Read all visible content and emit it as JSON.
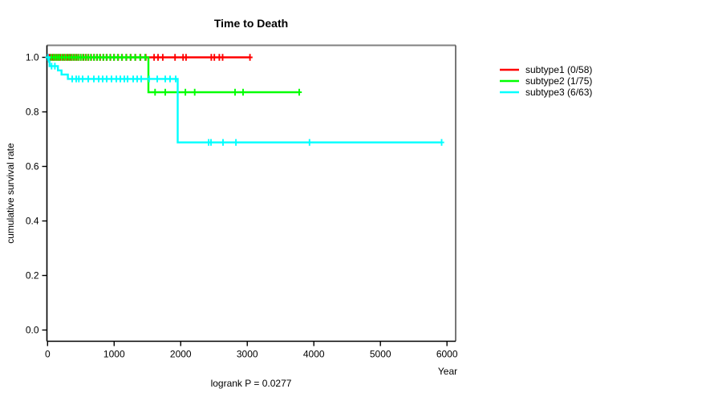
{
  "chart_data": {
    "type": "line",
    "variant": "kaplan-meier-step",
    "title": "Time to Death",
    "xlabel": "Year",
    "ylabel": "cumulative survival rate",
    "annotation": "logrank P = 0.0277",
    "xlim": [
      0,
      6000
    ],
    "ylim": [
      0,
      1.0
    ],
    "grid": false,
    "legend_position": "right-outside",
    "x_ticks": [
      0,
      1000,
      2000,
      3000,
      4000,
      5000,
      6000
    ],
    "x_tick_labels": [
      "0",
      "1000",
      "2000",
      "3000",
      "4000",
      "5000",
      "6000"
    ],
    "y_ticks": [
      0,
      0.2,
      0.4,
      0.6,
      0.8,
      1.0
    ],
    "y_tick_labels": [
      "0.0",
      "0.2",
      "0.4",
      "0.6",
      "0.8",
      "1.0"
    ],
    "series": [
      {
        "name": "subtype1",
        "label": "subtype1 (0/58)",
        "events": "0/58",
        "color": "#ff0000",
        "start": [
          0,
          1.0
        ],
        "steps": [],
        "end_x": 3040,
        "censor_marks": [
          [
            10,
            1
          ],
          [
            25,
            1
          ],
          [
            40,
            1
          ],
          [
            75,
            1
          ],
          [
            100,
            1
          ],
          [
            135,
            1
          ],
          [
            165,
            1
          ],
          [
            190,
            1
          ],
          [
            230,
            1
          ],
          [
            260,
            1
          ],
          [
            300,
            1
          ],
          [
            335,
            1
          ],
          [
            365,
            1
          ],
          [
            400,
            1
          ],
          [
            435,
            1
          ],
          [
            465,
            1
          ],
          [
            500,
            1
          ],
          [
            540,
            1
          ],
          [
            580,
            1
          ],
          [
            615,
            1
          ],
          [
            655,
            1
          ],
          [
            700,
            1
          ],
          [
            745,
            1
          ],
          [
            790,
            1
          ],
          [
            840,
            1
          ],
          [
            890,
            1
          ],
          [
            945,
            1
          ],
          [
            1000,
            1
          ],
          [
            1060,
            1
          ],
          [
            1120,
            1
          ],
          [
            1185,
            1
          ],
          [
            1250,
            1
          ],
          [
            1320,
            1
          ],
          [
            1395,
            1
          ],
          [
            1475,
            1
          ],
          [
            1600,
            1
          ],
          [
            1660,
            1
          ],
          [
            1730,
            1
          ],
          [
            1915,
            1
          ],
          [
            2035,
            1
          ],
          [
            2080,
            1
          ],
          [
            2460,
            1
          ],
          [
            2505,
            1
          ],
          [
            2580,
            1
          ],
          [
            2630,
            1
          ],
          [
            3040,
            1
          ]
        ]
      },
      {
        "name": "subtype2",
        "label": "subtype2 (1/75)",
        "events": "1/75",
        "color": "#00ff00",
        "start": [
          0,
          1.0
        ],
        "steps": [
          [
            1515,
            0.872
          ]
        ],
        "end_x": 3780,
        "censor_marks": [
          [
            55,
            1
          ],
          [
            90,
            1
          ],
          [
            120,
            1
          ],
          [
            150,
            1
          ],
          [
            180,
            1
          ],
          [
            215,
            1
          ],
          [
            250,
            1
          ],
          [
            285,
            1
          ],
          [
            320,
            1
          ],
          [
            355,
            1
          ],
          [
            390,
            1
          ],
          [
            425,
            1
          ],
          [
            460,
            1
          ],
          [
            495,
            1
          ],
          [
            530,
            1
          ],
          [
            570,
            1
          ],
          [
            610,
            1
          ],
          [
            650,
            1
          ],
          [
            695,
            1
          ],
          [
            740,
            1
          ],
          [
            785,
            1
          ],
          [
            835,
            1
          ],
          [
            885,
            1
          ],
          [
            940,
            1
          ],
          [
            995,
            1
          ],
          [
            1055,
            1
          ],
          [
            1115,
            1
          ],
          [
            1180,
            1
          ],
          [
            1245,
            1
          ],
          [
            1315,
            1
          ],
          [
            1390,
            1
          ],
          [
            1465,
            1
          ],
          [
            1615,
            0.872
          ],
          [
            1768,
            0.872
          ],
          [
            2070,
            0.872
          ],
          [
            2210,
            0.872
          ],
          [
            2816,
            0.872
          ],
          [
            2937,
            0.872
          ],
          [
            3780,
            0.872
          ]
        ]
      },
      {
        "name": "subtype3",
        "label": "subtype3 (6/63)",
        "events": "6/63",
        "color": "#00ffff",
        "start": [
          0,
          1.0
        ],
        "steps": [
          [
            20,
            0.984
          ],
          [
            30,
            0.968
          ],
          [
            155,
            0.952
          ],
          [
            210,
            0.937
          ],
          [
            305,
            0.921
          ],
          [
            1955,
            0.688
          ]
        ],
        "end_x": 5920,
        "censor_marks": [
          [
            5,
            1
          ],
          [
            60,
            0.968
          ],
          [
            110,
            0.968
          ],
          [
            370,
            0.921
          ],
          [
            430,
            0.921
          ],
          [
            470,
            0.921
          ],
          [
            527,
            0.921
          ],
          [
            611,
            0.921
          ],
          [
            695,
            0.921
          ],
          [
            768,
            0.921
          ],
          [
            828,
            0.921
          ],
          [
            888,
            0.921
          ],
          [
            960,
            0.921
          ],
          [
            1033,
            0.921
          ],
          [
            1093,
            0.921
          ],
          [
            1153,
            0.921
          ],
          [
            1201,
            0.921
          ],
          [
            1286,
            0.921
          ],
          [
            1346,
            0.921
          ],
          [
            1406,
            0.921
          ],
          [
            1527,
            0.921
          ],
          [
            1647,
            0.921
          ],
          [
            1768,
            0.921
          ],
          [
            1840,
            0.921
          ],
          [
            1925,
            0.921
          ],
          [
            2420,
            0.688
          ],
          [
            2455,
            0.688
          ],
          [
            2635,
            0.688
          ],
          [
            2830,
            0.688
          ],
          [
            3935,
            0.688
          ],
          [
            5920,
            0.688
          ]
        ]
      }
    ]
  }
}
